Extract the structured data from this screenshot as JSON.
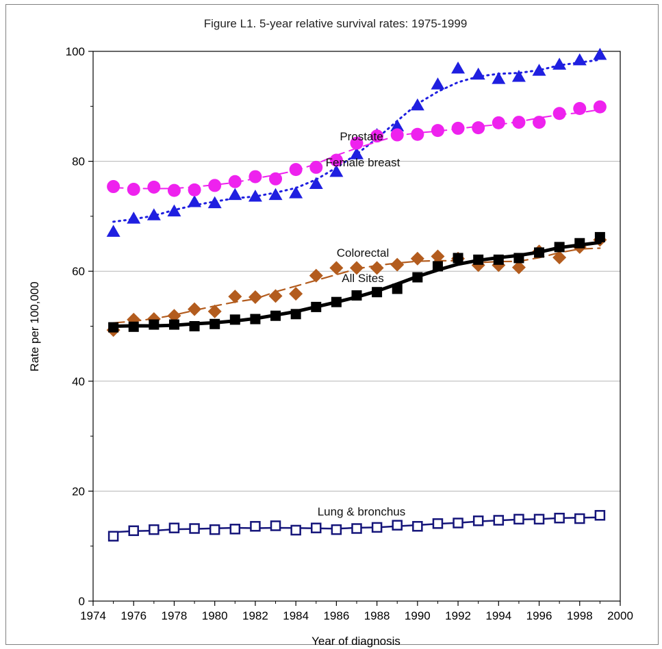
{
  "chart_data": {
    "type": "line",
    "title": "Figure L1. 5-year relative survival rates: 1975-1999",
    "xlabel": "Year of diagnosis",
    "ylabel": "Rate per 100,000",
    "xlim": [
      1974,
      2000
    ],
    "ylim": [
      0,
      100
    ],
    "xticks": [
      1974,
      1976,
      1978,
      1980,
      1982,
      1984,
      1986,
      1988,
      1990,
      1992,
      1994,
      1996,
      1998,
      2000
    ],
    "yticks": [
      0,
      20,
      40,
      60,
      80,
      100
    ],
    "grid": "horizontal",
    "x": [
      1975,
      1976,
      1977,
      1978,
      1979,
      1980,
      1981,
      1982,
      1983,
      1984,
      1985,
      1986,
      1987,
      1988,
      1989,
      1990,
      1991,
      1992,
      1993,
      1994,
      1995,
      1996,
      1997,
      1998,
      1999
    ],
    "series": [
      {
        "name": "Prostate",
        "color": "#1f1fe0",
        "marker": "triangle",
        "values": [
          67.2,
          69.6,
          70.2,
          70.9,
          72.6,
          72.4,
          73.9,
          73.6,
          73.9,
          74.2,
          75.9,
          78.1,
          81.3,
          84.8,
          86.4,
          90.2,
          94.0,
          96.9,
          95.8,
          95.0,
          95.4,
          96.5,
          97.6,
          98.4,
          99.4
        ]
      },
      {
        "name": "Female breast",
        "color": "#ee22ee",
        "marker": "circle",
        "values": [
          75.4,
          74.9,
          75.3,
          74.7,
          74.8,
          75.6,
          76.3,
          77.2,
          76.8,
          78.5,
          78.9,
          80.2,
          83.3,
          84.6,
          84.8,
          84.9,
          85.6,
          86.0,
          86.1,
          87.0,
          87.1,
          87.1,
          88.7,
          89.6,
          89.9
        ]
      },
      {
        "name": "Colorectal",
        "color": "#b35c1e",
        "marker": "diamond",
        "values": [
          49.3,
          51.2,
          51.3,
          51.9,
          53.1,
          52.7,
          55.4,
          55.3,
          55.5,
          55.9,
          59.2,
          60.6,
          60.6,
          60.6,
          61.2,
          62.3,
          62.7,
          62.3,
          61.1,
          61.1,
          60.7,
          63.6,
          62.5,
          64.4,
          65.7
        ]
      },
      {
        "name": "All Sites",
        "color": "#000000",
        "marker": "square",
        "values": [
          49.8,
          49.9,
          50.3,
          50.3,
          50.0,
          50.4,
          51.2,
          51.3,
          51.9,
          52.2,
          53.5,
          54.4,
          55.6,
          56.2,
          56.8,
          58.9,
          60.9,
          62.4,
          62.1,
          62.1,
          62.4,
          63.4,
          64.4,
          65.1,
          66.2
        ]
      },
      {
        "name": "Lung & bronchus",
        "color": "#15157a",
        "marker": "open-square",
        "values": [
          11.8,
          12.8,
          13.0,
          13.3,
          13.2,
          13.0,
          13.1,
          13.6,
          13.7,
          12.9,
          13.3,
          13.0,
          13.2,
          13.4,
          13.8,
          13.6,
          14.1,
          14.2,
          14.6,
          14.7,
          14.9,
          14.9,
          15.1,
          15.0,
          15.6
        ]
      }
    ]
  }
}
